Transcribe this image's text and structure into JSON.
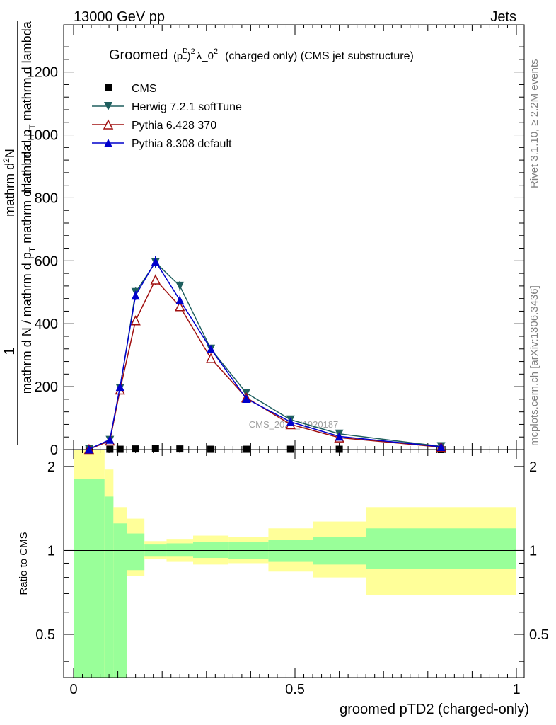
{
  "header": {
    "left": "13000 GeV pp",
    "right": "Jets"
  },
  "side_labels": {
    "rivet": "Rivet 3.1.10, ≥ 2.2M events",
    "mcplots": "mcplots.cern.ch [arXiv:1306.3436]"
  },
  "watermark": "CMS_2021_I1920187",
  "ratio_ylabel": "Ratio to CMS",
  "colors": {
    "cms": "#000000",
    "herwig": "#1f5f5f",
    "pythia6": "#a01010",
    "pythia8": "#0000cc",
    "band_inner": "#99ff99",
    "band_outer": "#ffff99"
  },
  "chart_data": {
    "type": "line",
    "title": "Groomed (p_T^D)^2 λ_0^2 (charged only) (CMS jet substructure)",
    "title_parts": {
      "pre": "Groomed",
      "sup1": "D",
      "sub1": "T",
      "sup2": "2",
      "mid": "λ_0",
      "sup3": "2",
      "post": "(charged only) (CMS jet substructure)"
    },
    "xlabel": "groomed pTD2 (charged-only)",
    "ylabel_parts": {
      "one": "1",
      "den": "mathrm d N / mathrm d p",
      "den_sub": "T",
      "den2": " mathrm d lambda",
      "num": "mathrm d",
      "num_sup": "2",
      "num2": "N",
      "num_den": "mathrm d p",
      "num_den_sub": "T",
      "num_den2": " mathrm d lambda"
    },
    "xlim": [
      -0.02,
      1.02
    ],
    "ylim": [
      0,
      1350
    ],
    "ratio_ylim": [
      0.35,
      2.3
    ],
    "x_ticks": [
      "0",
      "0.5",
      "1"
    ],
    "y_ticks": [
      "0",
      "200",
      "400",
      "600",
      "800",
      "1000",
      "1200"
    ],
    "ratio_y_ticks": [
      "0.5",
      "1",
      "2"
    ],
    "legend_position": "top-left",
    "x": [
      0.035,
      0.082,
      0.105,
      0.14,
      0.185,
      0.24,
      0.31,
      0.39,
      0.49,
      0.6,
      0.83
    ],
    "series": [
      {
        "name": "CMS",
        "marker": "square",
        "values": [
          0,
          1,
          1,
          2,
          3,
          2,
          1,
          1,
          1,
          1,
          0
        ]
      },
      {
        "name": "Herwig 7.2.1 softTune",
        "marker": "triangle-down",
        "values": [
          2,
          30,
          195,
          500,
          595,
          520,
          320,
          180,
          95,
          50,
          10
        ]
      },
      {
        "name": "Pythia 6.428 370",
        "marker": "triangle-up-open",
        "values": [
          1,
          28,
          190,
          410,
          540,
          455,
          290,
          165,
          80,
          38,
          8
        ]
      },
      {
        "name": "Pythia 8.308 default",
        "marker": "triangle-up",
        "values": [
          1,
          32,
          200,
          490,
          598,
          475,
          320,
          162,
          88,
          42,
          9
        ]
      }
    ],
    "ratio_bands": [
      {
        "x0": 0.0,
        "x1": 0.07,
        "inner": [
          0.3,
          1.8
        ],
        "outer": [
          0.3,
          2.3
        ]
      },
      {
        "x0": 0.07,
        "x1": 0.09,
        "inner": [
          0.3,
          1.56
        ],
        "outer": [
          0.3,
          1.95
        ]
      },
      {
        "x0": 0.09,
        "x1": 0.12,
        "inner": [
          0.3,
          1.25
        ],
        "outer": [
          0.66,
          1.43
        ]
      },
      {
        "x0": 0.12,
        "x1": 0.16,
        "inner": [
          0.85,
          1.15
        ],
        "outer": [
          0.81,
          1.3
        ]
      },
      {
        "x0": 0.16,
        "x1": 0.21,
        "inner": [
          0.95,
          1.05
        ],
        "outer": [
          0.93,
          1.08
        ]
      },
      {
        "x0": 0.21,
        "x1": 0.27,
        "inner": [
          0.95,
          1.06
        ],
        "outer": [
          0.91,
          1.1
        ]
      },
      {
        "x0": 0.27,
        "x1": 0.35,
        "inner": [
          0.94,
          1.07
        ],
        "outer": [
          0.89,
          1.13
        ]
      },
      {
        "x0": 0.35,
        "x1": 0.44,
        "inner": [
          0.93,
          1.07
        ],
        "outer": [
          0.9,
          1.12
        ]
      },
      {
        "x0": 0.44,
        "x1": 0.54,
        "inner": [
          0.91,
          1.09
        ],
        "outer": [
          0.84,
          1.2
        ]
      },
      {
        "x0": 0.54,
        "x1": 0.66,
        "inner": [
          0.89,
          1.12
        ],
        "outer": [
          0.8,
          1.27
        ]
      },
      {
        "x0": 0.66,
        "x1": 1.0,
        "inner": [
          0.86,
          1.2
        ],
        "outer": [
          0.69,
          1.43
        ]
      }
    ]
  }
}
